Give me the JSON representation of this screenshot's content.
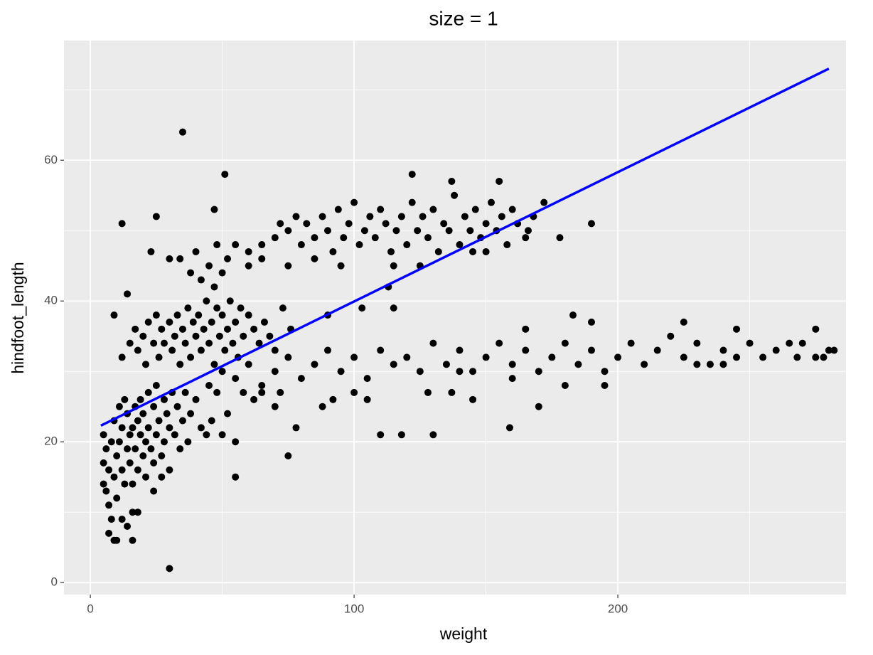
{
  "chart_data": {
    "type": "scatter",
    "title": "size = 1",
    "x_label": "weight",
    "y_label": "hindfoot_length",
    "xlim": [
      -10,
      286.5
    ],
    "ylim": [
      -1.7,
      77
    ],
    "xticks": [
      0,
      100,
      200
    ],
    "yticks": [
      0,
      20,
      40,
      60
    ],
    "xminor": [
      50,
      150,
      250
    ],
    "yminor": [
      10,
      30,
      50,
      70
    ],
    "grid": true,
    "color": "#000000",
    "fit": {
      "x": [
        4,
        280
      ],
      "y": [
        22.3,
        73
      ],
      "color": "#0000ff"
    },
    "points": [
      [
        35,
        64
      ],
      [
        51,
        58
      ],
      [
        30,
        2
      ],
      [
        12,
        51
      ],
      [
        25,
        52
      ],
      [
        47,
        53
      ],
      [
        9,
        38
      ],
      [
        14,
        41
      ],
      [
        10,
        6
      ],
      [
        16,
        6
      ],
      [
        122,
        58
      ],
      [
        137,
        57
      ],
      [
        155,
        57
      ],
      [
        178,
        49
      ],
      [
        190,
        51
      ],
      [
        110,
        21
      ],
      [
        118,
        21
      ],
      [
        130,
        21
      ],
      [
        159,
        22
      ],
      [
        170,
        25
      ],
      [
        78,
        22
      ],
      [
        75,
        18
      ],
      [
        55,
        15
      ],
      [
        115,
        39
      ],
      [
        113,
        42
      ],
      [
        103,
        39
      ],
      [
        90,
        38
      ],
      [
        145,
        26
      ],
      [
        137,
        27
      ],
      [
        128,
        27
      ],
      [
        183,
        38
      ],
      [
        190,
        37
      ],
      [
        165,
        36
      ],
      [
        275,
        36
      ],
      [
        278,
        32
      ],
      [
        268,
        32
      ],
      [
        265,
        34
      ],
      [
        280,
        33
      ],
      [
        245,
        36
      ],
      [
        225,
        37
      ],
      [
        5,
        21
      ],
      [
        5,
        17
      ],
      [
        5,
        14
      ],
      [
        6,
        13
      ],
      [
        6,
        19
      ],
      [
        7,
        16
      ],
      [
        7,
        11
      ],
      [
        8,
        9
      ],
      [
        8,
        20
      ],
      [
        9,
        15
      ],
      [
        9,
        23
      ],
      [
        10,
        18
      ],
      [
        10,
        12
      ],
      [
        11,
        25
      ],
      [
        11,
        20
      ],
      [
        12,
        16
      ],
      [
        12,
        22
      ],
      [
        13,
        14
      ],
      [
        13,
        26
      ],
      [
        14,
        19
      ],
      [
        14,
        24
      ],
      [
        15,
        17
      ],
      [
        15,
        21
      ],
      [
        16,
        22
      ],
      [
        16,
        14
      ],
      [
        17,
        25
      ],
      [
        17,
        19
      ],
      [
        18,
        23
      ],
      [
        18,
        16
      ],
      [
        19,
        21
      ],
      [
        19,
        26
      ],
      [
        20,
        18
      ],
      [
        20,
        24
      ],
      [
        21,
        20
      ],
      [
        21,
        15
      ],
      [
        22,
        27
      ],
      [
        22,
        22
      ],
      [
        23,
        19
      ],
      [
        24,
        25
      ],
      [
        24,
        17
      ],
      [
        25,
        21
      ],
      [
        25,
        28
      ],
      [
        26,
        23
      ],
      [
        27,
        18
      ],
      [
        28,
        26
      ],
      [
        28,
        20
      ],
      [
        29,
        24
      ],
      [
        30,
        22
      ],
      [
        30,
        16
      ],
      [
        31,
        27
      ],
      [
        32,
        21
      ],
      [
        33,
        25
      ],
      [
        34,
        19
      ],
      [
        35,
        23
      ],
      [
        36,
        27
      ],
      [
        37,
        20
      ],
      [
        38,
        24
      ],
      [
        40,
        26
      ],
      [
        42,
        22
      ],
      [
        44,
        21
      ],
      [
        46,
        23
      ],
      [
        48,
        27
      ],
      [
        50,
        21
      ],
      [
        52,
        24
      ],
      [
        55,
        20
      ],
      [
        7,
        7
      ],
      [
        9,
        6
      ],
      [
        12,
        9
      ],
      [
        14,
        8
      ],
      [
        16,
        10
      ],
      [
        18,
        10
      ],
      [
        24,
        13
      ],
      [
        27,
        15
      ],
      [
        58,
        27
      ],
      [
        62,
        26
      ],
      [
        65,
        28
      ],
      [
        70,
        25
      ],
      [
        72,
        27
      ],
      [
        12,
        32
      ],
      [
        15,
        34
      ],
      [
        17,
        36
      ],
      [
        18,
        33
      ],
      [
        20,
        35
      ],
      [
        21,
        31
      ],
      [
        22,
        37
      ],
      [
        24,
        34
      ],
      [
        25,
        38
      ],
      [
        26,
        32
      ],
      [
        27,
        36
      ],
      [
        28,
        34
      ],
      [
        30,
        37
      ],
      [
        31,
        33
      ],
      [
        32,
        35
      ],
      [
        33,
        38
      ],
      [
        34,
        31
      ],
      [
        35,
        36
      ],
      [
        36,
        34
      ],
      [
        37,
        39
      ],
      [
        38,
        32
      ],
      [
        39,
        37
      ],
      [
        40,
        35
      ],
      [
        41,
        38
      ],
      [
        42,
        33
      ],
      [
        43,
        36
      ],
      [
        44,
        40
      ],
      [
        45,
        34
      ],
      [
        46,
        37
      ],
      [
        47,
        31
      ],
      [
        48,
        39
      ],
      [
        49,
        35
      ],
      [
        50,
        38
      ],
      [
        51,
        33
      ],
      [
        52,
        36
      ],
      [
        53,
        40
      ],
      [
        54,
        34
      ],
      [
        55,
        37
      ],
      [
        56,
        32
      ],
      [
        57,
        39
      ],
      [
        58,
        35
      ],
      [
        60,
        38
      ],
      [
        62,
        36
      ],
      [
        64,
        34
      ],
      [
        66,
        37
      ],
      [
        68,
        35
      ],
      [
        70,
        33
      ],
      [
        73,
        39
      ],
      [
        76,
        36
      ],
      [
        34,
        46
      ],
      [
        30,
        46
      ],
      [
        23,
        47
      ],
      [
        38,
        44
      ],
      [
        40,
        47
      ],
      [
        45,
        45
      ],
      [
        47,
        42
      ],
      [
        50,
        44
      ],
      [
        52,
        46
      ],
      [
        55,
        48
      ],
      [
        60,
        45
      ],
      [
        65,
        46
      ],
      [
        48,
        48
      ],
      [
        42,
        43
      ],
      [
        60,
        47
      ],
      [
        65,
        48
      ],
      [
        70,
        49
      ],
      [
        72,
        51
      ],
      [
        75,
        50
      ],
      [
        78,
        52
      ],
      [
        80,
        48
      ],
      [
        82,
        51
      ],
      [
        85,
        49
      ],
      [
        88,
        52
      ],
      [
        90,
        50
      ],
      [
        92,
        47
      ],
      [
        94,
        53
      ],
      [
        96,
        49
      ],
      [
        98,
        51
      ],
      [
        100,
        54
      ],
      [
        102,
        48
      ],
      [
        104,
        50
      ],
      [
        106,
        52
      ],
      [
        108,
        49
      ],
      [
        110,
        53
      ],
      [
        112,
        51
      ],
      [
        114,
        47
      ],
      [
        116,
        50
      ],
      [
        118,
        52
      ],
      [
        120,
        48
      ],
      [
        122,
        54
      ],
      [
        124,
        50
      ],
      [
        126,
        52
      ],
      [
        128,
        49
      ],
      [
        130,
        53
      ],
      [
        132,
        47
      ],
      [
        134,
        51
      ],
      [
        136,
        50
      ],
      [
        138,
        55
      ],
      [
        140,
        48
      ],
      [
        142,
        52
      ],
      [
        144,
        50
      ],
      [
        146,
        53
      ],
      [
        148,
        49
      ],
      [
        150,
        51
      ],
      [
        152,
        54
      ],
      [
        154,
        50
      ],
      [
        156,
        52
      ],
      [
        158,
        48
      ],
      [
        160,
        53
      ],
      [
        162,
        51
      ],
      [
        165,
        49
      ],
      [
        168,
        52
      ],
      [
        172,
        54
      ],
      [
        166,
        50
      ],
      [
        145,
        47
      ],
      [
        150,
        47
      ],
      [
        125,
        45
      ],
      [
        115,
        45
      ],
      [
        95,
        45
      ],
      [
        85,
        46
      ],
      [
        75,
        45
      ],
      [
        45,
        28
      ],
      [
        50,
        30
      ],
      [
        55,
        29
      ],
      [
        60,
        31
      ],
      [
        65,
        27
      ],
      [
        70,
        30
      ],
      [
        75,
        32
      ],
      [
        80,
        29
      ],
      [
        85,
        31
      ],
      [
        90,
        33
      ],
      [
        95,
        30
      ],
      [
        100,
        32
      ],
      [
        105,
        29
      ],
      [
        110,
        33
      ],
      [
        115,
        31
      ],
      [
        120,
        32
      ],
      [
        125,
        30
      ],
      [
        130,
        34
      ],
      [
        135,
        31
      ],
      [
        140,
        33
      ],
      [
        145,
        30
      ],
      [
        150,
        32
      ],
      [
        155,
        34
      ],
      [
        160,
        31
      ],
      [
        165,
        33
      ],
      [
        170,
        30
      ],
      [
        175,
        32
      ],
      [
        180,
        34
      ],
      [
        185,
        31
      ],
      [
        190,
        33
      ],
      [
        195,
        30
      ],
      [
        200,
        32
      ],
      [
        205,
        34
      ],
      [
        210,
        31
      ],
      [
        215,
        33
      ],
      [
        220,
        35
      ],
      [
        225,
        32
      ],
      [
        230,
        34
      ],
      [
        235,
        31
      ],
      [
        240,
        33
      ],
      [
        245,
        32
      ],
      [
        250,
        34
      ],
      [
        255,
        32
      ],
      [
        260,
        33
      ],
      [
        270,
        34
      ],
      [
        275,
        32
      ],
      [
        282,
        33
      ],
      [
        100,
        27
      ],
      [
        92,
        26
      ],
      [
        88,
        25
      ],
      [
        105,
        26
      ],
      [
        140,
        30
      ],
      [
        160,
        29
      ],
      [
        180,
        28
      ],
      [
        195,
        28
      ],
      [
        230,
        31
      ],
      [
        240,
        31
      ]
    ]
  }
}
